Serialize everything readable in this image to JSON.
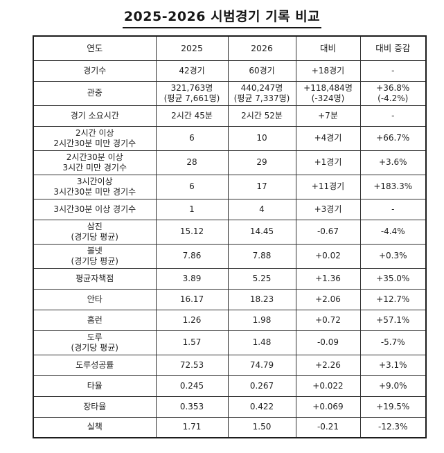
{
  "page": {
    "title": "2025-2026 시범경기 기록 비교"
  },
  "colors": {
    "background": "#ffffff",
    "text": "#1e1e1e",
    "border": "#2e2e2e",
    "outer_border": "#1c1c1c"
  },
  "table": {
    "headers": [
      "연도",
      "2025",
      "2026",
      "대비",
      "대비 증감"
    ],
    "rows": [
      {
        "label": "경기수",
        "y2025": "42경기",
        "y2026": "60경기",
        "diff": "+18경기",
        "pct": "-"
      },
      {
        "label": "관중",
        "y2025": "321,763명\n(평균 7,661명)",
        "y2026": "440,247명\n(평균 7,337명)",
        "diff": "+118,484명\n(-324명)",
        "pct": "+36.8%\n(-4.2%)"
      },
      {
        "label": "경기 소요시간",
        "y2025": "2시간 45분",
        "y2026": "2시간 52분",
        "diff": "+7분",
        "pct": "-"
      },
      {
        "label": "2시간 이상\n2시간30분 미만 경기수",
        "y2025": "6",
        "y2026": "10",
        "diff": "+4경기",
        "pct": "+66.7%"
      },
      {
        "label": "2시간30분 이상\n3시간 미만 경기수",
        "y2025": "28",
        "y2026": "29",
        "diff": "+1경기",
        "pct": "+3.6%"
      },
      {
        "label": "3시간이상\n3시간30분 미만 경기수",
        "y2025": "6",
        "y2026": "17",
        "diff": "+11경기",
        "pct": "+183.3%"
      },
      {
        "label": "3시간30분 이상 경기수",
        "y2025": "1",
        "y2026": "4",
        "diff": "+3경기",
        "pct": "-"
      },
      {
        "label": "삼진\n(경기당 평균)",
        "y2025": "15.12",
        "y2026": "14.45",
        "diff": "-0.67",
        "pct": "-4.4%"
      },
      {
        "label": "볼넷\n(경기당 평균)",
        "y2025": "7.86",
        "y2026": "7.88",
        "diff": "+0.02",
        "pct": "+0.3%"
      },
      {
        "label": "평균자책점",
        "y2025": "3.89",
        "y2026": "5.25",
        "diff": "+1.36",
        "pct": "+35.0%"
      },
      {
        "label": "안타",
        "y2025": "16.17",
        "y2026": "18.23",
        "diff": "+2.06",
        "pct": "+12.7%"
      },
      {
        "label": "홈런",
        "y2025": "1.26",
        "y2026": "1.98",
        "diff": "+0.72",
        "pct": "+57.1%"
      },
      {
        "label": "도루\n(경기당 평균)",
        "y2025": "1.57",
        "y2026": "1.48",
        "diff": "-0.09",
        "pct": "-5.7%"
      },
      {
        "label": "도루성공률",
        "y2025": "72.53",
        "y2026": "74.79",
        "diff": "+2.26",
        "pct": "+3.1%"
      },
      {
        "label": "타율",
        "y2025": "0.245",
        "y2026": "0.267",
        "diff": "+0.022",
        "pct": "+9.0%"
      },
      {
        "label": "장타율",
        "y2025": "0.353",
        "y2026": "0.422",
        "diff": "+0.069",
        "pct": "+19.5%"
      },
      {
        "label": "실책",
        "y2025": "1.71",
        "y2026": "1.50",
        "diff": "-0.21",
        "pct": "-12.3%"
      }
    ]
  }
}
